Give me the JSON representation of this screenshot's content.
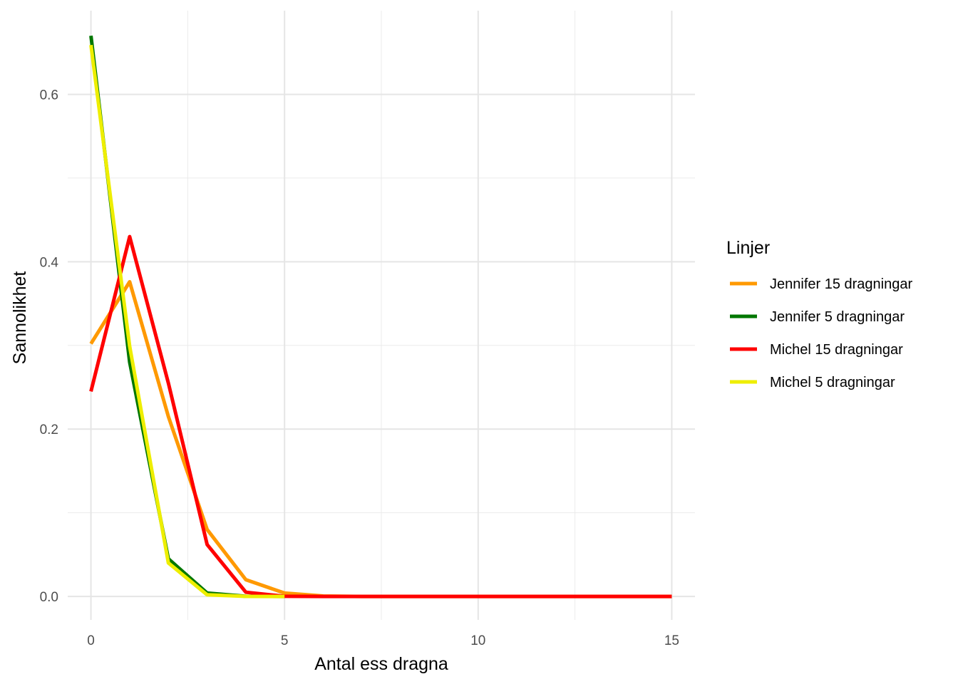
{
  "chart_data": {
    "type": "line",
    "xlabel": "Antal ess dragna",
    "ylabel": "Sannolikhet",
    "xlim": [
      -0.6,
      15.6
    ],
    "ylim": [
      -0.028,
      0.7
    ],
    "x_ticks": [
      0,
      5,
      10,
      15
    ],
    "x_tick_labels": [
      "0",
      "5",
      "10",
      "15"
    ],
    "y_ticks": [
      0.0,
      0.2,
      0.4,
      0.6
    ],
    "y_tick_labels": [
      "0.0",
      "0.2",
      "0.4",
      "0.6"
    ],
    "x_minor": [
      2.5,
      7.5,
      12.5
    ],
    "y_minor": [
      0.1,
      0.3,
      0.5
    ],
    "grid": true,
    "legend": {
      "title": "Linjer",
      "placement": "right"
    },
    "series": [
      {
        "name": "Jennifer 15 dragningar",
        "color": "#FF9900",
        "x": [
          0,
          1,
          2,
          3,
          4,
          5,
          6,
          7,
          8,
          9,
          10,
          11,
          12,
          13,
          14,
          15
        ],
        "values": [
          0.302,
          0.376,
          0.215,
          0.08,
          0.02,
          0.004,
          0.0005,
          0,
          0,
          0,
          0,
          0,
          0,
          0,
          0,
          0
        ]
      },
      {
        "name": "Jennifer 5 dragningar",
        "color": "#007700",
        "x": [
          0,
          1,
          2,
          3,
          4,
          5
        ],
        "values": [
          0.67,
          0.28,
          0.045,
          0.004,
          0.0002,
          0
        ]
      },
      {
        "name": "Michel 15 dragningar",
        "color": "#FF0000",
        "x": [
          0,
          1,
          2,
          3,
          4,
          5,
          6,
          7,
          8,
          9,
          10,
          11,
          12,
          13,
          14,
          15
        ],
        "values": [
          0.245,
          0.43,
          0.255,
          0.062,
          0.005,
          0.0002,
          0,
          0,
          0,
          0,
          0,
          0,
          0,
          0,
          0,
          0
        ]
      },
      {
        "name": "Michel 5 dragningar",
        "color": "#EEEE00",
        "x": [
          0,
          1,
          2,
          3,
          4,
          5
        ],
        "values": [
          0.659,
          0.299,
          0.04,
          0.002,
          0.0001,
          0
        ]
      }
    ]
  }
}
